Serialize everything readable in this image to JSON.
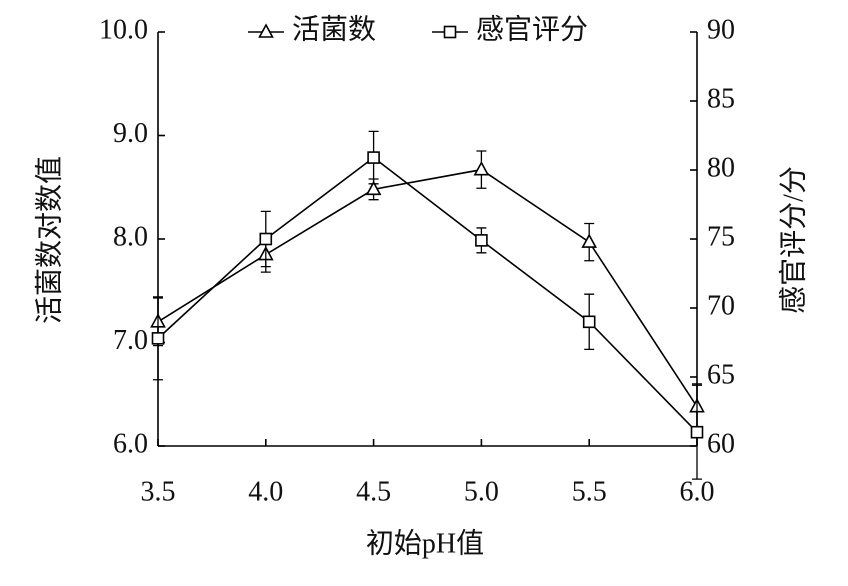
{
  "chart_data": {
    "type": "line",
    "x": [
      3.5,
      {
        "value": 4,
        "label": "4.0"
      },
      4.5,
      {
        "value": 5,
        "label": "5.0"
      },
      5.5,
      {
        "value": 6,
        "label": "6.0"
      }
    ],
    "xlabel": "初始pH值",
    "ylabel": "活菌数对数值",
    "y2label": "感官评分/分",
    "xlim": [
      3.5,
      6
    ],
    "xticks": [
      3.5,
      {
        "value": 4,
        "label": "4.0"
      },
      4.5,
      {
        "value": 5,
        "label": "5.0"
      },
      5.5,
      {
        "value": 6,
        "label": "6.0"
      }
    ],
    "ylim": [
      6,
      10
    ],
    "yticks": [
      {
        "value": 6,
        "label": "6.0"
      },
      {
        "value": 7,
        "label": "7.0"
      },
      {
        "value": 8,
        "label": "8.0"
      },
      {
        "value": 9,
        "label": "9.0"
      },
      {
        "value": 10,
        "label": "10.0"
      }
    ],
    "y2lim": [
      60,
      90
    ],
    "y2ticks": [
      60,
      65,
      70,
      75,
      80,
      85,
      90
    ],
    "legend": "top",
    "series": [
      {
        "name": "活菌数",
        "marker": "triangle",
        "color": "#000000",
        "values": [
          7.2,
          7.85,
          8.48,
          8.67,
          7.97,
          6.38
        ],
        "errors": [
          0.23,
          0.17,
          0.1,
          0.18,
          0.18,
          0.22
        ]
      },
      {
        "name": "感官评分",
        "marker": "square",
        "color": "#000000",
        "axis": "y2",
        "values": [
          67.8,
          75.0,
          80.9,
          74.9,
          69.0,
          61.0
        ],
        "errors": [
          3,
          2,
          1.9,
          0.9,
          2,
          3.4
        ]
      }
    ]
  }
}
